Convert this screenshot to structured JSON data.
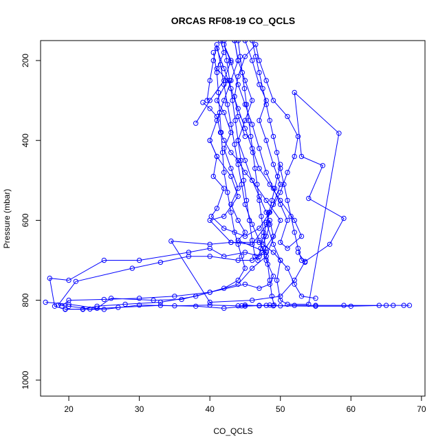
{
  "chart_data": {
    "type": "line",
    "title": "ORCAS RF08-19 CO_QCLS",
    "xlabel": "CO_QCLS",
    "ylabel": "Pressure (mbar)",
    "xlim": [
      16,
      70.5
    ],
    "ylim": [
      1040,
      150
    ],
    "y_reversed": true,
    "x_ticks": [
      20,
      30,
      40,
      50,
      60,
      70
    ],
    "y_ticks": [
      200,
      400,
      600,
      800,
      1000
    ],
    "grid": false,
    "legend": "none",
    "series_color": "#0000ff",
    "marker": "open-circle",
    "series": [
      {
        "values": [
          [
            41.5,
            150
          ],
          [
            42,
            180
          ],
          [
            41,
            220
          ],
          [
            42.5,
            250
          ],
          [
            41,
            300
          ],
          [
            42,
            330
          ],
          [
            43,
            380
          ],
          [
            42,
            420
          ],
          [
            43,
            470
          ],
          [
            44,
            520
          ],
          [
            43,
            560
          ],
          [
            44,
            600
          ],
          [
            45,
            630
          ],
          [
            44,
            650
          ],
          [
            48,
            680
          ],
          [
            47,
            690
          ],
          [
            45,
            680
          ],
          [
            42,
            690
          ],
          [
            40,
            670
          ],
          [
            37,
            680
          ],
          [
            30,
            700
          ],
          [
            25,
            700
          ],
          [
            20,
            750
          ],
          [
            17.3,
            745
          ],
          [
            18,
            815
          ],
          [
            19.5,
            822
          ],
          [
            22,
            823
          ],
          [
            25,
            823
          ],
          [
            30,
            812
          ],
          [
            35,
            814
          ],
          [
            40,
            812
          ],
          [
            44,
            814
          ],
          [
            47,
            813
          ],
          [
            49,
            814
          ],
          [
            52,
            813
          ],
          [
            55,
            813
          ],
          [
            59,
            813
          ],
          [
            64,
            813
          ],
          [
            66,
            813
          ],
          [
            68.3,
            813
          ],
          [
            67.5,
            813
          ],
          [
            65,
            813
          ],
          [
            60,
            815
          ],
          [
            55,
            815
          ],
          [
            50,
            814
          ],
          [
            48.5,
            812
          ],
          [
            47,
            814
          ],
          [
            45,
            812
          ],
          [
            44.5,
            814
          ]
        ]
      },
      {
        "values": [
          [
            16.7,
            805
          ],
          [
            20,
            810
          ],
          [
            24,
            820
          ],
          [
            26,
            795
          ],
          [
            32,
            800
          ],
          [
            36,
            798
          ],
          [
            40,
            780
          ],
          [
            44,
            760
          ],
          [
            46,
            720
          ],
          [
            48,
            690
          ],
          [
            50,
            600
          ],
          [
            48,
            550
          ],
          [
            46,
            500
          ],
          [
            45,
            450
          ],
          [
            44,
            400
          ],
          [
            45,
            350
          ],
          [
            46,
            300
          ],
          [
            45,
            250
          ],
          [
            44,
            200
          ],
          [
            43.5,
            150
          ]
        ]
      },
      {
        "values": [
          [
            43.5,
            150
          ],
          [
            44,
            200
          ],
          [
            43,
            250
          ],
          [
            42,
            300
          ],
          [
            41,
            350
          ],
          [
            40,
            400
          ],
          [
            41,
            440
          ],
          [
            43,
            490
          ],
          [
            44,
            540
          ],
          [
            42,
            590
          ],
          [
            40,
            600
          ],
          [
            43,
            655
          ],
          [
            46,
            660
          ],
          [
            48.5,
            600
          ],
          [
            49,
            640
          ],
          [
            47.5,
            680
          ],
          [
            46,
            700
          ],
          [
            44,
            700
          ],
          [
            40,
            690
          ],
          [
            37,
            690
          ],
          [
            33,
            705
          ],
          [
            29,
            720
          ],
          [
            21,
            753
          ],
          [
            18.5,
            812
          ],
          [
            20,
            815
          ],
          [
            23,
            822
          ],
          [
            27,
            818
          ],
          [
            33,
            813
          ],
          [
            38,
            815
          ],
          [
            42,
            820
          ],
          [
            45,
            815
          ],
          [
            48,
            813
          ]
        ]
      },
      {
        "values": [
          [
            45,
            150
          ],
          [
            46,
            200
          ],
          [
            47,
            260
          ],
          [
            48,
            300
          ],
          [
            47,
            350
          ],
          [
            48,
            400
          ],
          [
            49,
            460
          ],
          [
            50,
            510
          ],
          [
            49,
            560
          ],
          [
            48,
            605
          ],
          [
            49,
            660
          ],
          [
            50,
            700
          ],
          [
            49.5,
            750
          ],
          [
            50,
            800
          ],
          [
            51,
            810
          ],
          [
            54,
            810
          ],
          [
            58.3,
            382
          ],
          [
            52,
            280
          ],
          [
            53,
            440
          ],
          [
            56,
            463
          ],
          [
            54,
            545
          ],
          [
            59,
            595
          ],
          [
            57,
            660
          ],
          [
            53.5,
            703
          ],
          [
            52,
            750
          ],
          [
            50,
            790
          ],
          [
            46,
            800
          ],
          [
            40,
            805
          ],
          [
            34.5,
            652
          ],
          [
            40,
            660
          ],
          [
            43,
            655
          ],
          [
            47,
            655
          ]
        ]
      },
      {
        "values": [
          [
            38,
            357
          ],
          [
            40,
            300
          ],
          [
            42,
            250
          ],
          [
            43,
            200
          ],
          [
            42,
            160
          ],
          [
            43,
            205
          ],
          [
            44,
            260
          ],
          [
            45,
            310
          ],
          [
            46,
            360
          ],
          [
            47,
            420
          ],
          [
            48,
            480
          ],
          [
            49,
            520
          ],
          [
            50,
            560
          ],
          [
            51,
            600
          ],
          [
            50,
            655
          ],
          [
            51,
            670
          ],
          [
            53,
            640
          ],
          [
            52,
            600
          ],
          [
            50,
            550
          ],
          [
            48.5,
            510
          ],
          [
            47,
            470
          ],
          [
            46,
            420
          ],
          [
            45,
            370
          ],
          [
            44,
            320
          ],
          [
            43,
            270
          ],
          [
            42,
            220
          ],
          [
            41,
            170
          ]
        ]
      },
      {
        "values": [
          [
            40,
            400
          ],
          [
            41,
            440
          ],
          [
            40.5,
            490
          ],
          [
            42,
            520
          ],
          [
            41,
            570
          ],
          [
            40.2,
            590
          ],
          [
            42,
            620
          ],
          [
            45,
            640
          ],
          [
            47,
            620
          ],
          [
            48.5,
            580
          ],
          [
            50,
            530
          ],
          [
            51,
            480
          ],
          [
            52,
            440
          ],
          [
            52.5,
            390
          ],
          [
            51,
            340
          ],
          [
            49,
            300
          ],
          [
            48,
            250
          ],
          [
            47,
            200
          ],
          [
            46.5,
            160
          ],
          [
            45,
            190
          ],
          [
            44,
            240
          ],
          [
            43.5,
            290
          ],
          [
            44,
            340
          ],
          [
            45,
            390
          ]
        ]
      },
      {
        "values": [
          [
            39.6,
            300
          ],
          [
            40,
            250
          ],
          [
            40.5,
            200
          ],
          [
            41,
            160
          ],
          [
            41.5,
            210
          ],
          [
            42,
            260
          ],
          [
            42.5,
            310
          ],
          [
            43,
            360
          ],
          [
            43.5,
            410
          ],
          [
            44,
            460
          ],
          [
            44.5,
            510
          ],
          [
            45,
            560
          ],
          [
            46,
            610
          ],
          [
            47,
            650
          ],
          [
            48,
            700
          ],
          [
            49,
            740
          ],
          [
            48.5,
            760
          ],
          [
            47,
            770
          ],
          [
            45,
            760
          ],
          [
            40,
            780
          ],
          [
            35,
            790
          ],
          [
            30,
            795
          ],
          [
            25,
            798
          ],
          [
            20,
            800
          ],
          [
            19,
            815
          ]
        ]
      },
      {
        "values": [
          [
            39,
            305
          ],
          [
            40,
            320
          ],
          [
            41,
            340
          ],
          [
            41.5,
            380
          ],
          [
            42,
            400
          ],
          [
            43,
            430
          ],
          [
            44,
            450
          ],
          [
            45,
            480
          ],
          [
            46,
            500
          ],
          [
            47,
            540
          ],
          [
            48,
            580
          ],
          [
            48.5,
            610
          ],
          [
            48,
            640
          ],
          [
            47.5,
            660
          ],
          [
            49,
            680
          ],
          [
            50,
            700
          ],
          [
            51,
            720
          ],
          [
            52,
            760
          ],
          [
            53,
            790
          ],
          [
            55,
            795
          ]
        ]
      },
      {
        "values": [
          [
            40.5,
            180
          ],
          [
            41,
            230
          ],
          [
            41.2,
            280
          ],
          [
            41.4,
            330
          ],
          [
            41.6,
            380
          ],
          [
            41.8,
            430
          ],
          [
            42,
            480
          ],
          [
            42.5,
            530
          ],
          [
            43,
            580
          ],
          [
            43.5,
            630
          ],
          [
            44,
            660
          ],
          [
            44.5,
            690
          ],
          [
            45,
            720
          ],
          [
            44,
            750
          ],
          [
            42,
            770
          ],
          [
            38,
            790
          ],
          [
            33,
            805
          ],
          [
            28,
            810
          ],
          [
            24,
            815
          ],
          [
            22,
            822
          ],
          [
            19.5,
            823
          ]
        ]
      },
      {
        "values": [
          [
            42,
            150
          ],
          [
            42.4,
            200
          ],
          [
            42.8,
            250
          ],
          [
            43.2,
            300
          ],
          [
            43.6,
            350
          ],
          [
            44,
            400
          ],
          [
            44.4,
            450
          ],
          [
            44.8,
            500
          ],
          [
            45.2,
            550
          ],
          [
            45.6,
            600
          ],
          [
            46,
            650
          ],
          [
            46.4,
            690
          ],
          [
            46.8,
            700
          ],
          [
            47.2,
            670
          ],
          [
            47.6,
            640
          ],
          [
            48,
            610
          ],
          [
            48.4,
            580
          ],
          [
            48.8,
            550
          ],
          [
            49.2,
            520
          ],
          [
            49.6,
            490
          ],
          [
            50,
            460
          ]
        ]
      },
      {
        "values": [
          [
            44,
            150
          ],
          [
            44.3,
            190
          ],
          [
            44.6,
            230
          ],
          [
            44.9,
            270
          ],
          [
            45.2,
            310
          ],
          [
            45.5,
            350
          ],
          [
            45.8,
            390
          ],
          [
            46.1,
            430
          ],
          [
            46.4,
            470
          ],
          [
            46.7,
            510
          ],
          [
            47,
            550
          ],
          [
            47.3,
            590
          ],
          [
            47.6,
            630
          ],
          [
            47.9,
            670
          ],
          [
            48.2,
            710
          ],
          [
            48.5,
            750
          ],
          [
            48.8,
            790
          ],
          [
            49.1,
            812
          ]
        ]
      },
      {
        "values": [
          [
            46,
            150
          ],
          [
            46.5,
            190
          ],
          [
            47,
            230
          ],
          [
            47.5,
            270
          ],
          [
            48,
            310
          ],
          [
            48.5,
            350
          ],
          [
            49,
            390
          ],
          [
            49.5,
            430
          ],
          [
            50,
            470
          ],
          [
            50.5,
            510
          ],
          [
            51,
            550
          ],
          [
            51.5,
            590
          ],
          [
            52,
            630
          ],
          [
            52.5,
            670
          ],
          [
            53,
            700
          ],
          [
            53.5,
            705
          ],
          [
            52.5,
            680
          ]
        ]
      }
    ]
  }
}
